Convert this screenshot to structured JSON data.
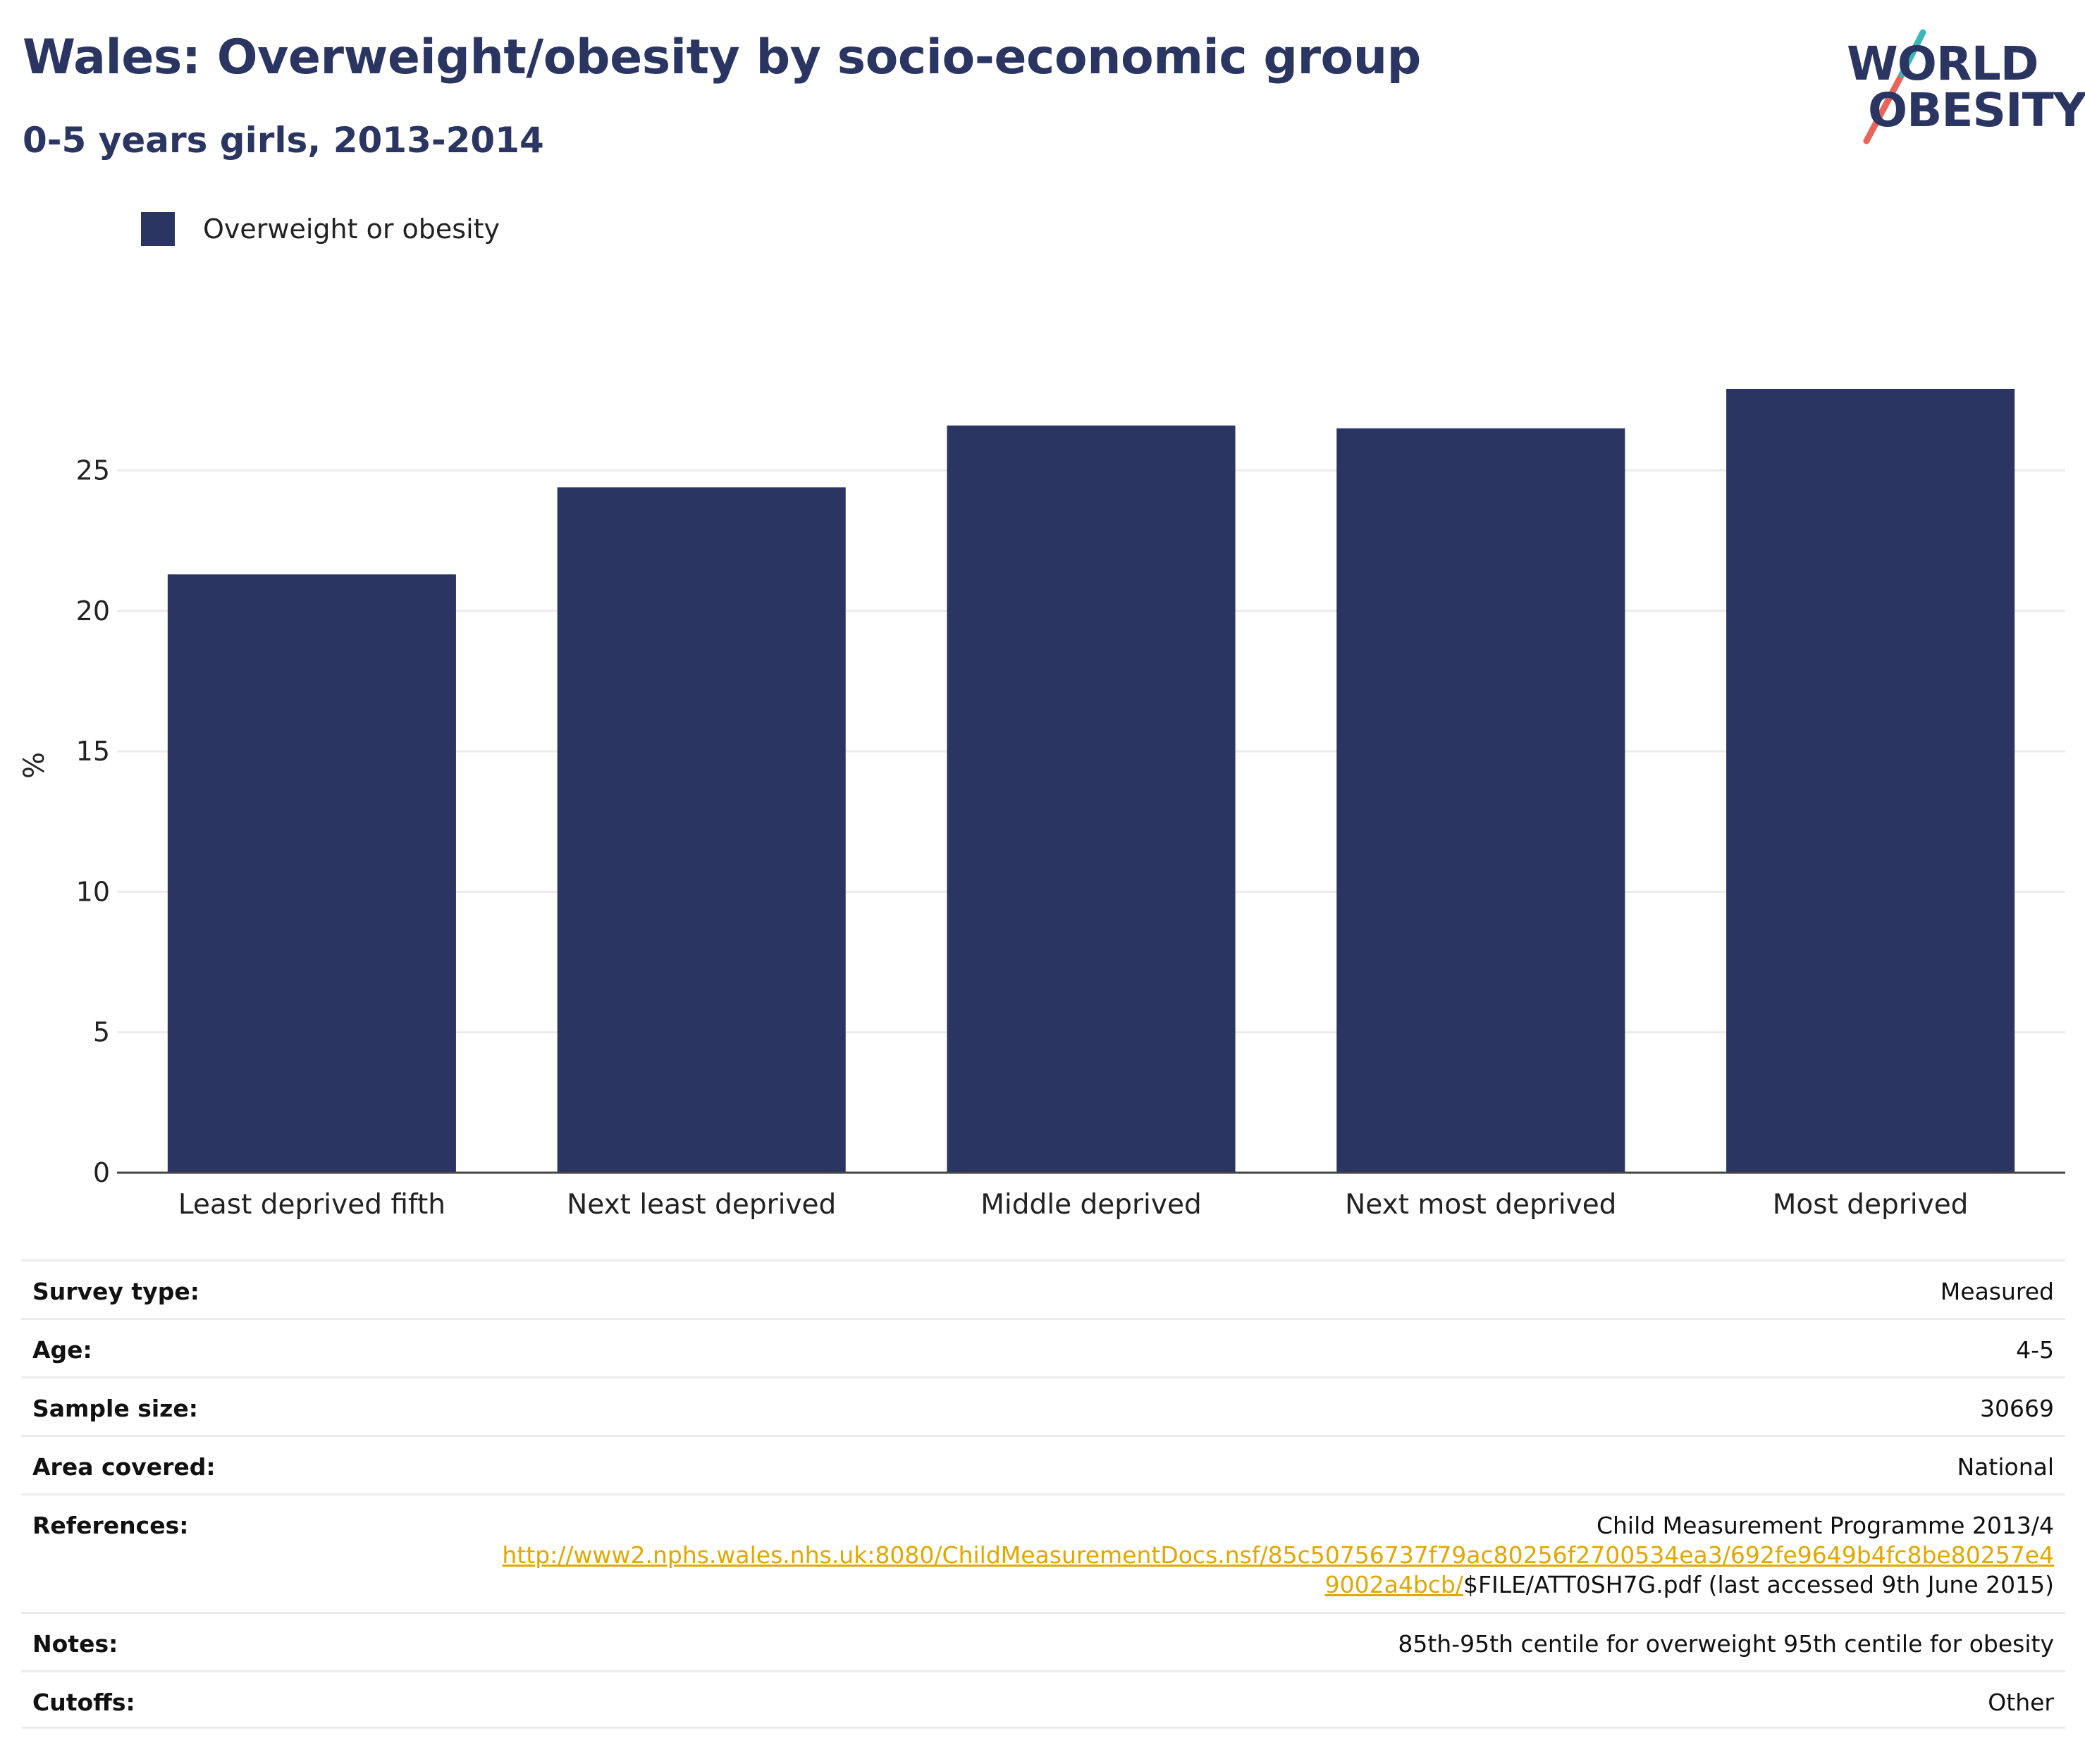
{
  "header": {
    "title": "Wales: Overweight/obesity by socio-economic group",
    "subtitle": "0-5 years girls, 2013-2014"
  },
  "logo": {
    "line1": "WORLD",
    "line2": "OBESITY"
  },
  "colors": {
    "bar": "#2b3562",
    "title": "#2a3561",
    "link": "#e0a800",
    "logo_slash_teal": "#3ab8b8",
    "logo_slash_red": "#e8655a"
  },
  "chart_data": {
    "type": "bar",
    "categories": [
      "Least deprived fifth",
      "Next least deprived",
      "Middle deprived",
      "Next most deprived",
      "Most deprived"
    ],
    "series": [
      {
        "name": "Overweight or obesity",
        "values": [
          21.3,
          24.4,
          26.6,
          26.5,
          27.9
        ]
      }
    ],
    "ylabel": "%",
    "xlabel": "",
    "ylim": [
      0,
      30
    ],
    "yticks": [
      0,
      5,
      10,
      15,
      20,
      25
    ],
    "grid": true,
    "legend_position": "top-left"
  },
  "info": {
    "survey_type": {
      "label": "Survey type:",
      "value": "Measured"
    },
    "age": {
      "label": "Age:",
      "value": "4-5"
    },
    "sample_size": {
      "label": "Sample size:",
      "value": "30669"
    },
    "area_covered": {
      "label": "Area covered:",
      "value": "National"
    },
    "references": {
      "label": "References:",
      "line1": "Child Measurement Programme 2013/4",
      "link_part1": "http://www2.nphs.wales.nhs.uk:8080/ChildMeasurementDocs.nsf/85c50756737f79ac80256f2700534ea3/692fe9649b4fc8be80257e4",
      "link_part2": "9002a4bcb/",
      "suffix": "$FILE/ATT0SH7G.pdf (last accessed 9th June 2015)"
    },
    "notes": {
      "label": "Notes:",
      "value": "85th-95th centile for overweight 95th centile for obesity"
    },
    "cutoffs": {
      "label": "Cutoffs:",
      "value": "Other"
    }
  }
}
